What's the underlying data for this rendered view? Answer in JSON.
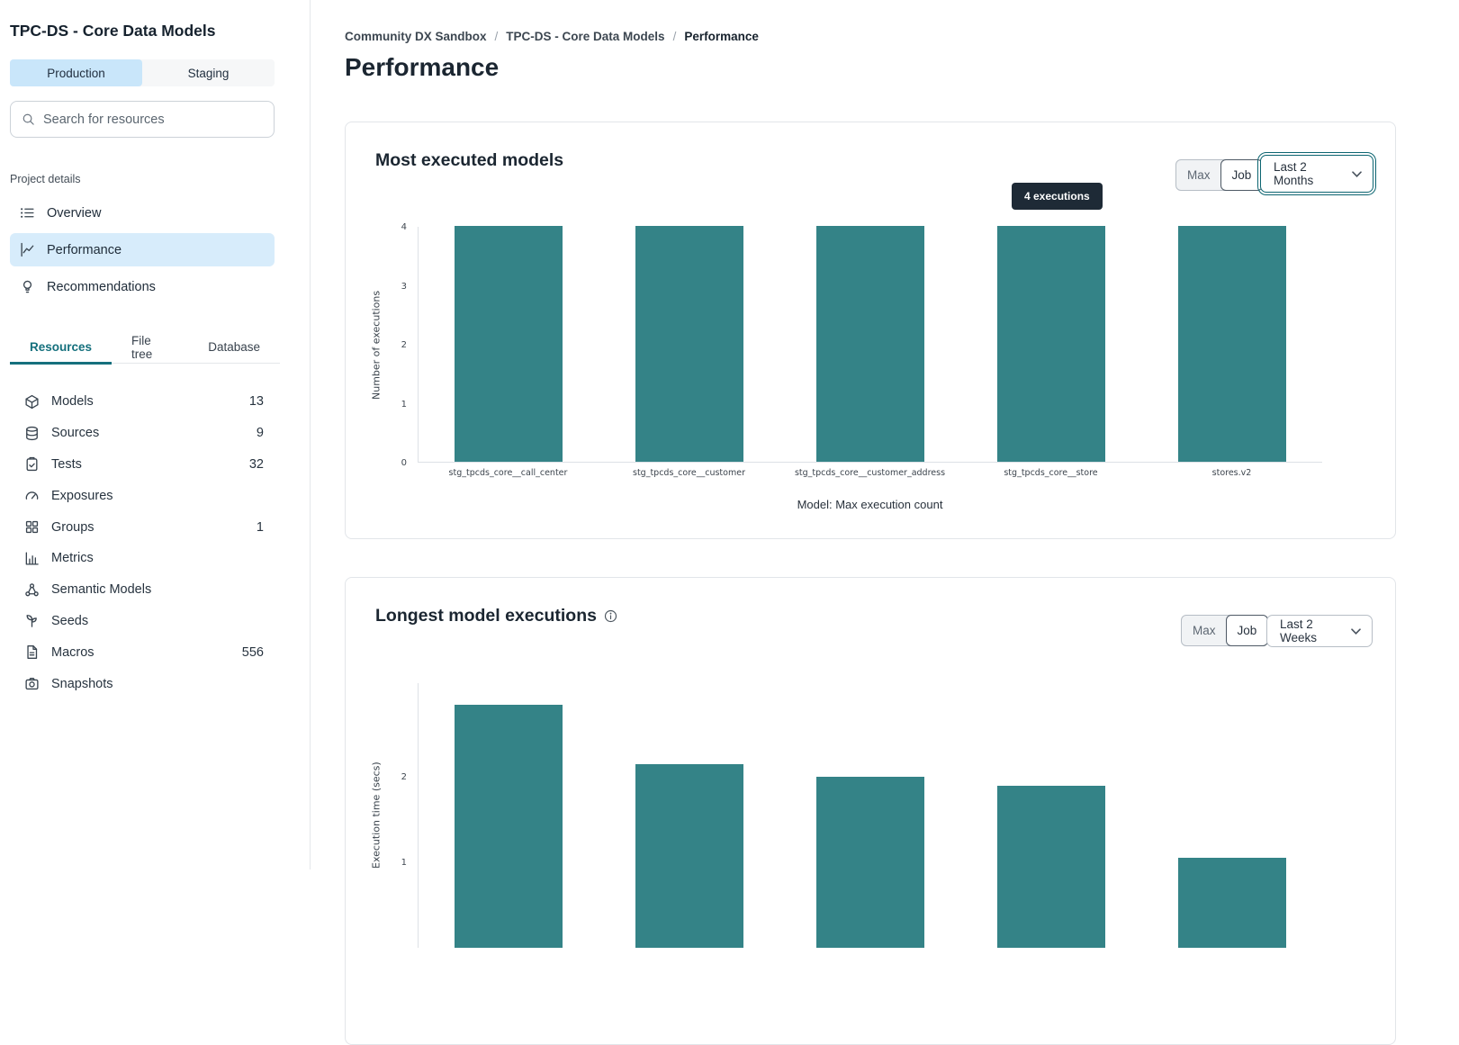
{
  "sidebar": {
    "title": "TPC-DS - Core Data Models",
    "env_tabs": [
      {
        "label": "Production",
        "selected": true
      },
      {
        "label": "Staging",
        "selected": false
      }
    ],
    "search_placeholder": "Search for resources",
    "section_label": "Project details",
    "nav": [
      {
        "label": "Overview",
        "icon": "list-icon",
        "selected": false
      },
      {
        "label": "Performance",
        "icon": "trend-line-icon",
        "selected": true
      },
      {
        "label": "Recommendations",
        "icon": "lightbulb-icon",
        "selected": false
      }
    ],
    "tabs": [
      {
        "label": "Resources",
        "selected": true
      },
      {
        "label": "File tree",
        "selected": false
      },
      {
        "label": "Database",
        "selected": false
      }
    ],
    "resources": [
      {
        "label": "Models",
        "icon": "cube-icon",
        "count": "13"
      },
      {
        "label": "Sources",
        "icon": "database-icon",
        "count": "9"
      },
      {
        "label": "Tests",
        "icon": "clipboard-icon",
        "count": "32"
      },
      {
        "label": "Exposures",
        "icon": "gauge-icon",
        "count": ""
      },
      {
        "label": "Groups",
        "icon": "grid-icon",
        "count": "1"
      },
      {
        "label": "Metrics",
        "icon": "bar-chart-icon",
        "count": ""
      },
      {
        "label": "Semantic Models",
        "icon": "nodes-icon",
        "count": ""
      },
      {
        "label": "Seeds",
        "icon": "seedling-icon",
        "count": ""
      },
      {
        "label": "Macros",
        "icon": "file-icon",
        "count": "556"
      },
      {
        "label": "Snapshots",
        "icon": "camera-icon",
        "count": ""
      }
    ]
  },
  "breadcrumb": [
    "Community DX Sandbox",
    "TPC-DS - Core Data Models",
    "Performance"
  ],
  "page_title": "Performance",
  "cards": [
    {
      "title": "Most executed models",
      "agg_buttons": [
        {
          "label": "Max",
          "selected": false
        },
        {
          "label": "Job",
          "selected": true
        }
      ],
      "range_select": "Last 2 Months",
      "tooltip": "4 executions"
    },
    {
      "title": "Longest model executions",
      "agg_buttons": [
        {
          "label": "Max",
          "selected": false
        },
        {
          "label": "Job",
          "selected": true
        }
      ],
      "range_select": "Last 2 Weeks"
    }
  ],
  "chart_data": [
    {
      "type": "bar",
      "title": "Most executed models",
      "categories": [
        "stg_tpcds_core__call_center",
        "stg_tpcds_core__customer",
        "stg_tpcds_core__customer_address",
        "stg_tpcds_core__store",
        "stores.v2"
      ],
      "values": [
        4,
        4,
        4,
        4,
        4
      ],
      "xlabel": "Model: Max execution count",
      "ylabel": "Number of executions",
      "yticks": [
        0,
        1,
        2,
        3,
        4
      ],
      "ylim": [
        0,
        4
      ],
      "bar_color": "#348387",
      "grid": false,
      "legend": false
    },
    {
      "type": "bar",
      "title": "Longest model executions",
      "values": [
        2.85,
        2.15,
        2.0,
        1.9,
        1.05
      ],
      "ylabel": "Execution time (secs)",
      "yticks": [
        1,
        2
      ],
      "ylim": [
        0,
        3.1
      ],
      "bar_color": "#348387",
      "grid": false,
      "legend": false
    }
  ],
  "colors": {
    "bar_teal": "#348387",
    "accent_teal": "#15707d",
    "selected_blue_bg": "#d7ecfb",
    "env_selected_bg": "#c9e6fa",
    "tooltip_bg": "#1e2a36",
    "text_dark": "#1e2a36",
    "text_grey": "#5b6670",
    "card_border": "#e2e5e9"
  }
}
